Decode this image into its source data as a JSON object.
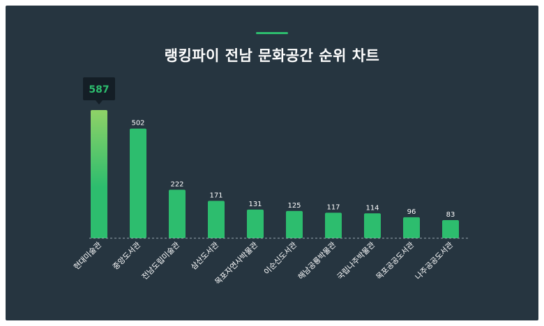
{
  "title": "랭킹파이 전남 문화공간 순위 차트",
  "colors": {
    "background": "#263540",
    "accent": "#2dbd6e",
    "bar": "#2dbd6e",
    "bar_highlight_top": "#8fd267",
    "tooltip_bg": "#141e26",
    "tooltip_text": "#2dbd6e"
  },
  "tooltip": {
    "value": "587"
  },
  "chart_data": {
    "type": "bar",
    "title": "랭킹파이 전남 문화공간 순위 차트",
    "categories": [
      "현대미술관",
      "중앙도서관",
      "전남도립미술관",
      "삼산도서관",
      "목포자연사박물관",
      "이순신도서관",
      "해남공룡박물관",
      "국립나주박물관",
      "목포공공도서관",
      "나주공공도서관"
    ],
    "values": [
      587,
      502,
      222,
      171,
      131,
      125,
      117,
      114,
      96,
      83
    ],
    "highlighted_index": 0,
    "xlabel": "",
    "ylabel": "",
    "ylim": [
      0,
      600
    ],
    "grid": false,
    "legend": "none"
  }
}
